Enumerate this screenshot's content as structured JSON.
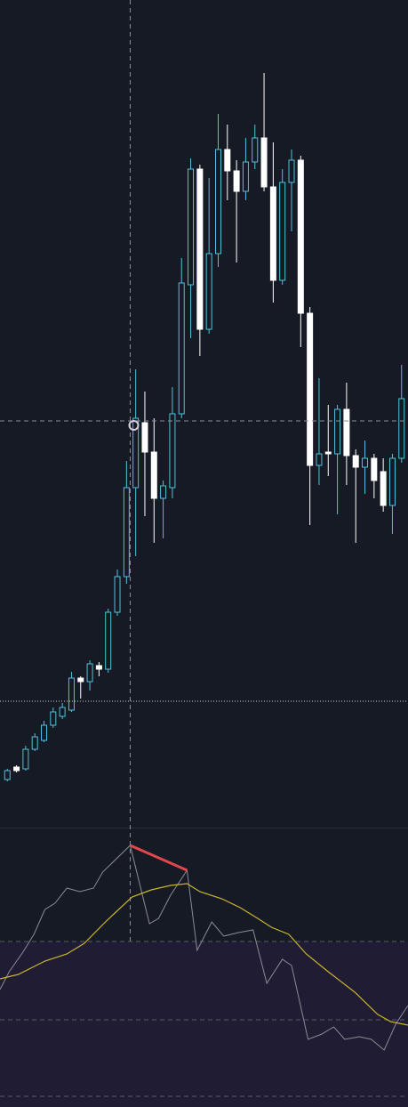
{
  "chart_data": [
    {
      "type": "candlestick",
      "x": [
        0,
        1,
        2,
        3,
        4,
        5,
        6,
        7,
        8,
        9,
        10,
        11,
        12,
        13,
        14,
        15,
        16,
        17,
        18,
        19,
        20,
        21,
        22,
        23,
        24,
        25,
        26,
        27,
        28,
        29,
        30,
        31,
        32,
        33,
        34,
        35,
        36,
        37,
        38,
        39,
        40,
        41,
        42,
        43
      ],
      "open": [
        54,
        68,
        66,
        88,
        98,
        115,
        125,
        132,
        168,
        164,
        182,
        178,
        242,
        282,
        382,
        455,
        422,
        370,
        382,
        465,
        610,
        740,
        560,
        645,
        762,
        738,
        715,
        748,
        775,
        720,
        615,
        725,
        750,
        578,
        407,
        422,
        420,
        470,
        418,
        405,
        415,
        400,
        362,
        415
      ],
      "high": [
        66,
        70,
        92,
        106,
        120,
        135,
        140,
        175,
        170,
        188,
        186,
        246,
        290,
        412,
        515,
        490,
        460,
        390,
        495,
        640,
        752,
        745,
        730,
        802,
        790,
        750,
        775,
        790,
        848,
        770,
        740,
        762,
        755,
        585,
        505,
        475,
        475,
        500,
        425,
        435,
        420,
        415,
        420,
        520
      ],
      "low": [
        52,
        62,
        64,
        86,
        96,
        112,
        122,
        130,
        145,
        154,
        170,
        174,
        238,
        274,
        305,
        350,
        320,
        325,
        370,
        460,
        550,
        530,
        555,
        630,
        705,
        635,
        705,
        740,
        715,
        590,
        610,
        670,
        540,
        340,
        385,
        395,
        352,
        385,
        320,
        375,
        370,
        355,
        330,
        410
      ],
      "close": [
        64,
        64,
        88,
        102,
        115,
        130,
        135,
        168,
        164,
        184,
        178,
        242,
        282,
        382,
        460,
        422,
        370,
        384,
        465,
        612,
        740,
        560,
        645,
        762,
        738,
        715,
        748,
        775,
        720,
        615,
        725,
        750,
        578,
        407,
        420,
        420,
        470,
        418,
        405,
        415,
        390,
        362,
        415,
        482
      ],
      "up_color": "#4fc3dc",
      "down_color": "#ffffff",
      "xlim": [
        -0.8,
        43.7
      ],
      "ylim": [
        0,
        930
      ],
      "crosshair": {
        "x": 13.4,
        "y": 457
      },
      "reference_line": 142
    },
    {
      "type": "line",
      "xlim": [
        -0.8,
        43.7
      ],
      "ylim": [
        0,
        314
      ],
      "levels": [
        186,
        98,
        12
      ],
      "series": [
        {
          "color": "#8a8d94",
          "x": [
            -0.8,
            0.2,
            1.7,
            2.9,
            4.1,
            5.2,
            6.5,
            7.9,
            9.4,
            10.4,
            11.6,
            13.4,
            15.5,
            16.5,
            17.8,
            19.6,
            20.7,
            22.3,
            23.6,
            25.2,
            26.8,
            28.3,
            30.0,
            31.0,
            32.8,
            34.3,
            35.6,
            36.8,
            38.4,
            39.7,
            41.1,
            42.4,
            43.7
          ],
          "values": [
            132,
            152,
            174,
            194,
            222,
            229,
            246,
            242,
            246,
            264,
            276,
            294,
            206,
            212,
            238,
            266,
            176,
            208,
            192,
            196,
            199,
            139,
            166,
            159,
            76,
            82,
            90,
            76,
            79,
            76,
            64,
            94,
            114
          ]
        },
        {
          "color": "#c9b52c",
          "x": [
            -0.8,
            1.2,
            4.1,
            6.5,
            8.4,
            10.8,
            13.6,
            15.7,
            17.8,
            19.6,
            21.0,
            23.4,
            25.4,
            27.3,
            28.8,
            30.7,
            32.6,
            35.0,
            37.9,
            40.4,
            41.8,
            43.7
          ],
          "values": [
            144,
            149,
            164,
            172,
            184,
            209,
            236,
            244,
            249,
            251,
            242,
            234,
            224,
            212,
            202,
            194,
            172,
            152,
            129,
            104,
            96,
            92
          ]
        }
      ],
      "divergence": {
        "color": "#e0474c",
        "x": [
          13.4,
          19.6
        ],
        "values": [
          294,
          266
        ]
      }
    }
  ]
}
